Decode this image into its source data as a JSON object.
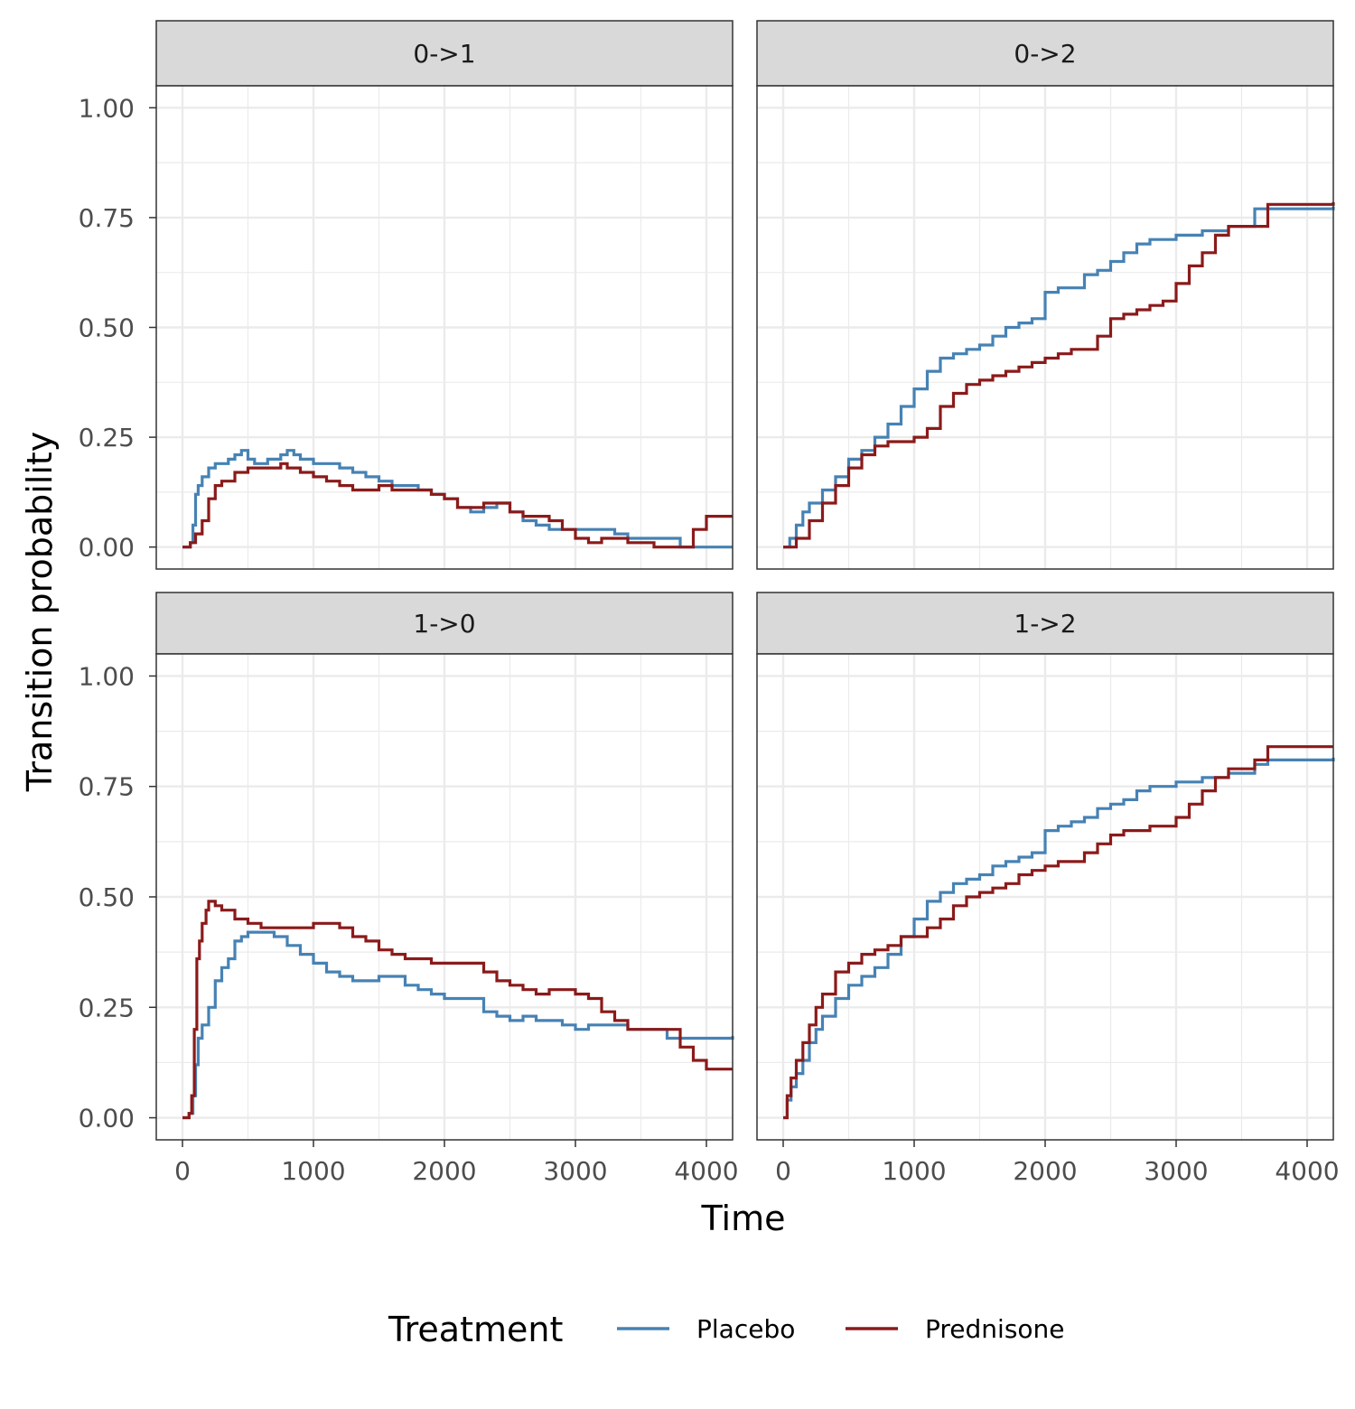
{
  "chart_data": {
    "type": "line",
    "xlabel": "Time",
    "ylabel": "Transition probability",
    "xlim": [
      -200,
      4200
    ],
    "ylim": [
      -0.05,
      1.05
    ],
    "x_ticks": [
      0,
      1000,
      2000,
      3000,
      4000
    ],
    "x_tick_labels": [
      "0",
      "1000",
      "2000",
      "3000",
      "4000"
    ],
    "y_ticks": [
      0,
      0.25,
      0.5,
      0.75,
      1
    ],
    "y_tick_labels": [
      "0.00",
      "0.25",
      "0.50",
      "0.75",
      "1.00"
    ],
    "grid": true,
    "step": true,
    "legend": {
      "title": "Treatment",
      "position": "bottom",
      "entries": [
        {
          "name": "Placebo",
          "color": "#4682b4"
        },
        {
          "name": "Prednisone",
          "color": "#8b1a1a"
        }
      ]
    },
    "panels": [
      {
        "label": "0->1",
        "series": [
          {
            "name": "Placebo",
            "color": "#4682b4",
            "x": [
              0,
              60,
              80,
              100,
              120,
              150,
              200,
              250,
              300,
              350,
              400,
              450,
              500,
              550,
              600,
              650,
              700,
              750,
              800,
              850,
              900,
              1000,
              1100,
              1200,
              1300,
              1400,
              1500,
              1600,
              1700,
              1800,
              1900,
              2000,
              2100,
              2200,
              2300,
              2400,
              2500,
              2600,
              2700,
              2800,
              2900,
              3000,
              3100,
              3200,
              3300,
              3400,
              3500,
              3600,
              3800,
              4200
            ],
            "y": [
              0,
              0.01,
              0.05,
              0.12,
              0.14,
              0.16,
              0.18,
              0.19,
              0.19,
              0.2,
              0.21,
              0.22,
              0.2,
              0.19,
              0.19,
              0.2,
              0.2,
              0.21,
              0.22,
              0.21,
              0.2,
              0.19,
              0.19,
              0.18,
              0.17,
              0.16,
              0.15,
              0.14,
              0.14,
              0.13,
              0.12,
              0.11,
              0.09,
              0.08,
              0.09,
              0.1,
              0.08,
              0.06,
              0.05,
              0.04,
              0.04,
              0.04,
              0.04,
              0.04,
              0.03,
              0.02,
              0.02,
              0.02,
              0.0,
              0.0
            ]
          },
          {
            "name": "Prednisone",
            "color": "#8b1a1a",
            "x": [
              0,
              60,
              100,
              150,
              200,
              250,
              300,
              400,
              500,
              600,
              700,
              750,
              800,
              900,
              1000,
              1100,
              1200,
              1300,
              1400,
              1500,
              1600,
              1700,
              1800,
              1900,
              2000,
              2100,
              2200,
              2300,
              2400,
              2500,
              2600,
              2700,
              2800,
              2900,
              3000,
              3100,
              3200,
              3300,
              3400,
              3500,
              3600,
              3800,
              3900,
              4000,
              4200
            ],
            "y": [
              0,
              0.01,
              0.03,
              0.06,
              0.11,
              0.14,
              0.15,
              0.17,
              0.18,
              0.18,
              0.18,
              0.19,
              0.18,
              0.17,
              0.16,
              0.15,
              0.14,
              0.13,
              0.13,
              0.14,
              0.13,
              0.13,
              0.13,
              0.12,
              0.11,
              0.09,
              0.09,
              0.1,
              0.1,
              0.08,
              0.07,
              0.07,
              0.06,
              0.04,
              0.02,
              0.01,
              0.02,
              0.02,
              0.01,
              0.01,
              0.0,
              0.0,
              0.04,
              0.07,
              0.07
            ]
          }
        ]
      },
      {
        "label": "0->2",
        "series": [
          {
            "name": "Placebo",
            "color": "#4682b4",
            "x": [
              0,
              50,
              100,
              150,
              200,
              300,
              400,
              500,
              600,
              700,
              800,
              900,
              1000,
              1100,
              1200,
              1300,
              1400,
              1500,
              1600,
              1700,
              1800,
              1900,
              2000,
              2100,
              2200,
              2300,
              2400,
              2500,
              2600,
              2700,
              2800,
              2900,
              3000,
              3100,
              3200,
              3300,
              3400,
              3500,
              3600,
              3700,
              4200
            ],
            "y": [
              0,
              0.02,
              0.05,
              0.08,
              0.1,
              0.13,
              0.16,
              0.2,
              0.22,
              0.25,
              0.28,
              0.32,
              0.36,
              0.4,
              0.43,
              0.44,
              0.45,
              0.46,
              0.48,
              0.5,
              0.51,
              0.52,
              0.58,
              0.59,
              0.59,
              0.62,
              0.63,
              0.65,
              0.67,
              0.69,
              0.7,
              0.7,
              0.71,
              0.71,
              0.72,
              0.72,
              0.73,
              0.73,
              0.77,
              0.77,
              0.775
            ]
          },
          {
            "name": "Prednisone",
            "color": "#8b1a1a",
            "x": [
              0,
              100,
              200,
              300,
              400,
              500,
              600,
              700,
              800,
              900,
              1000,
              1100,
              1200,
              1300,
              1400,
              1500,
              1600,
              1700,
              1800,
              1900,
              2000,
              2100,
              2200,
              2300,
              2400,
              2500,
              2600,
              2700,
              2800,
              2900,
              3000,
              3100,
              3200,
              3300,
              3400,
              3500,
              3600,
              3700,
              4200
            ],
            "y": [
              0,
              0.02,
              0.06,
              0.1,
              0.14,
              0.18,
              0.21,
              0.23,
              0.24,
              0.24,
              0.25,
              0.27,
              0.32,
              0.35,
              0.37,
              0.38,
              0.39,
              0.4,
              0.41,
              0.42,
              0.43,
              0.44,
              0.45,
              0.45,
              0.48,
              0.52,
              0.53,
              0.54,
              0.55,
              0.56,
              0.6,
              0.64,
              0.67,
              0.71,
              0.73,
              0.73,
              0.73,
              0.78,
              0.785
            ]
          }
        ]
      },
      {
        "label": "1->0",
        "series": [
          {
            "name": "Placebo",
            "color": "#4682b4",
            "x": [
              0,
              50,
              80,
              100,
              120,
              150,
              200,
              250,
              300,
              350,
              400,
              450,
              500,
              600,
              700,
              800,
              900,
              1000,
              1100,
              1200,
              1300,
              1400,
              1500,
              1600,
              1700,
              1800,
              1900,
              2000,
              2100,
              2200,
              2300,
              2400,
              2500,
              2600,
              2700,
              2800,
              2900,
              3000,
              3100,
              3200,
              3300,
              3400,
              3500,
              3600,
              3700,
              3800,
              4200
            ],
            "y": [
              0,
              0.01,
              0.05,
              0.12,
              0.18,
              0.21,
              0.25,
              0.31,
              0.34,
              0.36,
              0.4,
              0.41,
              0.42,
              0.42,
              0.41,
              0.39,
              0.37,
              0.35,
              0.33,
              0.32,
              0.31,
              0.31,
              0.32,
              0.32,
              0.3,
              0.29,
              0.28,
              0.27,
              0.27,
              0.27,
              0.24,
              0.23,
              0.22,
              0.23,
              0.22,
              0.22,
              0.21,
              0.2,
              0.21,
              0.21,
              0.21,
              0.2,
              0.2,
              0.2,
              0.18,
              0.18,
              0.185
            ]
          },
          {
            "name": "Prednisone",
            "color": "#8b1a1a",
            "x": [
              0,
              50,
              70,
              90,
              110,
              130,
              150,
              180,
              200,
              250,
              300,
              400,
              500,
              600,
              700,
              800,
              900,
              1000,
              1100,
              1200,
              1300,
              1400,
              1500,
              1600,
              1700,
              1800,
              1900,
              2000,
              2100,
              2200,
              2300,
              2400,
              2500,
              2600,
              2700,
              2800,
              2900,
              3000,
              3100,
              3200,
              3300,
              3400,
              3500,
              3600,
              3700,
              3800,
              3900,
              4000,
              4200
            ],
            "y": [
              0,
              0.01,
              0.05,
              0.2,
              0.36,
              0.4,
              0.44,
              0.47,
              0.49,
              0.48,
              0.47,
              0.45,
              0.44,
              0.43,
              0.43,
              0.43,
              0.43,
              0.44,
              0.44,
              0.43,
              0.41,
              0.4,
              0.38,
              0.37,
              0.36,
              0.36,
              0.35,
              0.35,
              0.35,
              0.35,
              0.33,
              0.31,
              0.3,
              0.29,
              0.28,
              0.29,
              0.29,
              0.28,
              0.27,
              0.24,
              0.22,
              0.2,
              0.2,
              0.2,
              0.2,
              0.16,
              0.13,
              0.11,
              0.11
            ]
          }
        ]
      },
      {
        "label": "1->2",
        "series": [
          {
            "name": "Placebo",
            "color": "#4682b4",
            "x": [
              0,
              30,
              60,
              100,
              150,
              200,
              250,
              300,
              400,
              500,
              600,
              700,
              800,
              900,
              1000,
              1100,
              1200,
              1300,
              1400,
              1500,
              1600,
              1700,
              1800,
              1900,
              2000,
              2100,
              2200,
              2300,
              2400,
              2500,
              2600,
              2700,
              2800,
              2900,
              3000,
              3100,
              3200,
              3300,
              3400,
              3500,
              3600,
              3700,
              4200
            ],
            "y": [
              0,
              0.04,
              0.07,
              0.1,
              0.13,
              0.17,
              0.2,
              0.23,
              0.27,
              0.3,
              0.32,
              0.34,
              0.37,
              0.41,
              0.45,
              0.49,
              0.51,
              0.53,
              0.54,
              0.55,
              0.57,
              0.58,
              0.59,
              0.6,
              0.65,
              0.66,
              0.67,
              0.68,
              0.7,
              0.71,
              0.72,
              0.74,
              0.75,
              0.75,
              0.76,
              0.76,
              0.77,
              0.77,
              0.78,
              0.78,
              0.8,
              0.81,
              0.815
            ]
          },
          {
            "name": "Prednisone",
            "color": "#8b1a1a",
            "x": [
              0,
              30,
              60,
              100,
              150,
              200,
              250,
              300,
              400,
              500,
              600,
              700,
              800,
              900,
              1000,
              1100,
              1200,
              1300,
              1400,
              1500,
              1600,
              1700,
              1800,
              1900,
              2000,
              2100,
              2200,
              2300,
              2400,
              2500,
              2600,
              2700,
              2800,
              2900,
              3000,
              3100,
              3200,
              3300,
              3400,
              3500,
              3600,
              3700,
              4200
            ],
            "y": [
              0,
              0.05,
              0.09,
              0.13,
              0.17,
              0.21,
              0.25,
              0.28,
              0.33,
              0.35,
              0.37,
              0.38,
              0.39,
              0.41,
              0.41,
              0.43,
              0.45,
              0.48,
              0.5,
              0.51,
              0.52,
              0.53,
              0.55,
              0.56,
              0.57,
              0.58,
              0.58,
              0.6,
              0.62,
              0.64,
              0.65,
              0.65,
              0.66,
              0.66,
              0.68,
              0.71,
              0.74,
              0.77,
              0.79,
              0.79,
              0.81,
              0.84,
              0.84
            ]
          }
        ]
      }
    ]
  }
}
